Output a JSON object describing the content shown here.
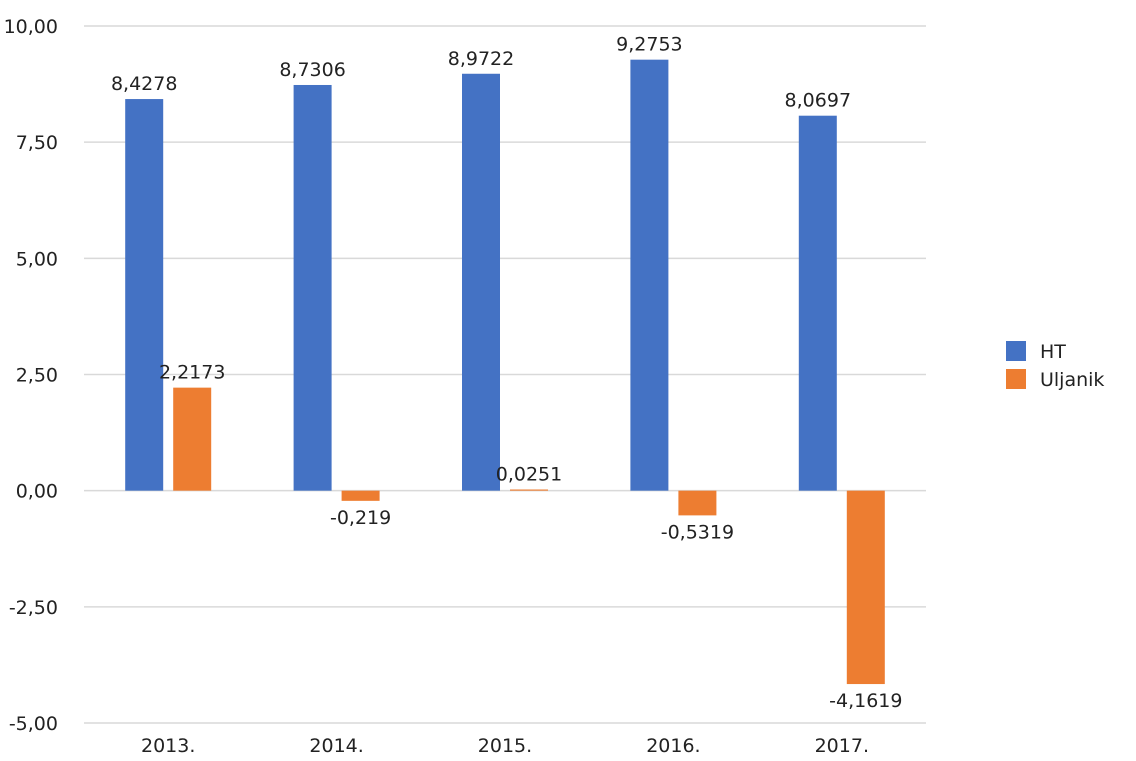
{
  "chart_data": {
    "type": "bar",
    "title": "",
    "xlabel": "",
    "ylabel": "",
    "categories": [
      "2013.",
      "2014.",
      "2015.",
      "2016.",
      "2017."
    ],
    "series": [
      {
        "name": "HT",
        "color": "#4472C4",
        "values": [
          8.4278,
          8.7306,
          8.9722,
          9.2753,
          8.0697
        ],
        "labels": [
          "8,4278",
          "8,7306",
          "8,9722",
          "9,2753",
          "8,0697"
        ]
      },
      {
        "name": "Uljanik",
        "color": "#ED7D31",
        "values": [
          2.2173,
          -0.219,
          0.0251,
          -0.5319,
          -4.1619
        ],
        "labels": [
          "2,2173",
          "-0,219",
          "0,0251",
          "-0,5319",
          "-4,1619"
        ]
      }
    ],
    "ylim": [
      -5,
      10
    ],
    "yticks": [
      10,
      7.5,
      5,
      2.5,
      0,
      -2.5,
      -5
    ],
    "ytick_labels": [
      "10,00",
      "7,50",
      "5,00",
      "2,50",
      "0,00",
      "-2,50",
      "-5,00"
    ],
    "grid": true,
    "legend": "right"
  }
}
